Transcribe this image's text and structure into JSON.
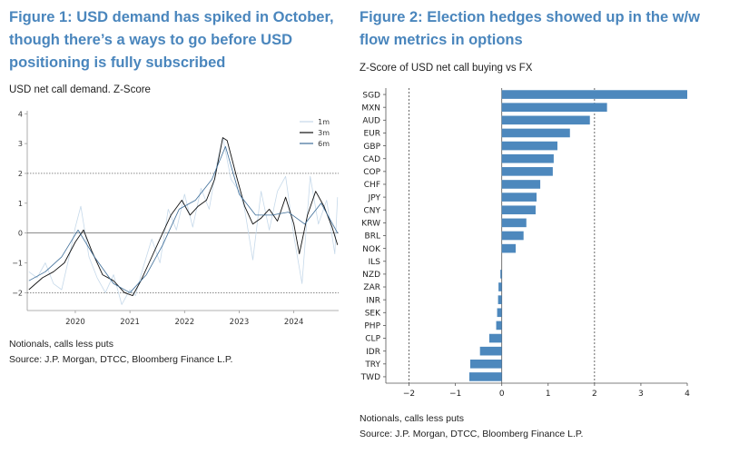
{
  "figure1": {
    "title_line1": "Figure 1: USD demand has spiked in October,",
    "title_line2": "though there’s a ways to go before USD",
    "title_line3": "positioning is fully subscribed",
    "subtitle": "USD net call demand. Z-Score",
    "note": "Notionals, calls less puts",
    "source": "Source: J.P. Morgan, DTCC, Bloomberg Finance L.P."
  },
  "figure2": {
    "title_line1": "Figure 2: Election hedges showed up in the w/w",
    "title_line2": "flow metrics in options",
    "subtitle": "Z-Score of USD net call buying vs FX",
    "note": "Notionals, calls less puts",
    "source": "Source: J.P. Morgan, DTCC, Bloomberg Finance L.P."
  },
  "chart_data": [
    {
      "type": "line",
      "x_tick_labels": [
        "2020",
        "2021",
        "2022",
        "2023",
        "2024"
      ],
      "xlim": [
        2019.12,
        2024.82
      ],
      "ylim": [
        -2.6,
        4.1
      ],
      "y_tick_labels": [
        "4",
        "3",
        "2",
        "1",
        "0",
        "−1",
        "−2"
      ],
      "reference_lines": [
        2,
        0,
        -2
      ],
      "legend_position": "top-right",
      "series": [
        {
          "name": "1m",
          "color": "#c6d9ea",
          "x": [
            2019.15,
            2019.3,
            2019.45,
            2019.6,
            2019.75,
            2019.9,
            2020.0,
            2020.1,
            2020.25,
            2020.4,
            2020.55,
            2020.7,
            2020.85,
            2021.0,
            2021.1,
            2021.25,
            2021.4,
            2021.55,
            2021.7,
            2021.85,
            2022.0,
            2022.15,
            2022.3,
            2022.45,
            2022.6,
            2022.7,
            2022.85,
            2023.0,
            2023.1,
            2023.25,
            2023.4,
            2023.55,
            2023.7,
            2023.85,
            2024.0,
            2024.15,
            2024.3,
            2024.45,
            2024.6,
            2024.75,
            2024.8
          ],
          "y": [
            -1.3,
            -1.5,
            -1.0,
            -1.7,
            -1.9,
            -0.7,
            0.2,
            0.9,
            -0.8,
            -1.5,
            -2.0,
            -1.4,
            -2.4,
            -1.9,
            -2.1,
            -1.1,
            -0.2,
            -1.0,
            0.8,
            0.1,
            1.3,
            0.2,
            1.5,
            0.8,
            2.4,
            3.2,
            1.8,
            1.4,
            0.8,
            -0.9,
            1.4,
            0.1,
            1.4,
            1.9,
            -0.1,
            -1.7,
            1.9,
            0.3,
            1.1,
            -0.7,
            1.2
          ]
        },
        {
          "name": "3m",
          "color": "#111111",
          "x": [
            2019.15,
            2019.4,
            2019.6,
            2019.8,
            2020.0,
            2020.15,
            2020.3,
            2020.5,
            2020.7,
            2020.9,
            2021.05,
            2021.2,
            2021.35,
            2021.55,
            2021.75,
            2021.95,
            2022.1,
            2022.25,
            2022.4,
            2022.55,
            2022.7,
            2022.78,
            2022.95,
            2023.1,
            2023.25,
            2023.4,
            2023.55,
            2023.7,
            2023.85,
            2024.0,
            2024.1,
            2024.25,
            2024.4,
            2024.55,
            2024.7,
            2024.8
          ],
          "y": [
            -1.9,
            -1.5,
            -1.3,
            -1.0,
            -0.3,
            0.1,
            -0.6,
            -1.4,
            -1.6,
            -2.0,
            -2.1,
            -1.6,
            -1.0,
            -0.2,
            0.6,
            1.1,
            0.6,
            0.9,
            1.1,
            1.8,
            3.2,
            3.1,
            1.9,
            0.9,
            0.3,
            0.5,
            0.8,
            0.4,
            1.2,
            0.3,
            -0.7,
            0.6,
            1.4,
            0.9,
            0.2,
            -0.4
          ]
        },
        {
          "name": "6m",
          "color": "#3d6d98",
          "x": [
            2019.15,
            2019.45,
            2019.75,
            2020.05,
            2020.35,
            2020.7,
            2021.0,
            2021.3,
            2021.6,
            2021.9,
            2022.2,
            2022.5,
            2022.75,
            2023.0,
            2023.3,
            2023.6,
            2023.9,
            2024.2,
            2024.5,
            2024.8
          ],
          "y": [
            -1.6,
            -1.3,
            -0.8,
            0.1,
            -0.8,
            -1.7,
            -2.0,
            -1.4,
            -0.4,
            0.8,
            1.1,
            1.8,
            2.9,
            1.3,
            0.6,
            0.6,
            0.7,
            0.3,
            1.0,
            0.0
          ]
        }
      ]
    },
    {
      "type": "bar",
      "orientation": "horizontal",
      "categories": [
        "SGD",
        "MXN",
        "AUD",
        "EUR",
        "GBP",
        "CAD",
        "COP",
        "CHF",
        "JPY",
        "CNY",
        "KRW",
        "BRL",
        "NOK",
        "ILS",
        "NZD",
        "ZAR",
        "INR",
        "SEK",
        "PHP",
        "CLP",
        "IDR",
        "TRY",
        "TWD"
      ],
      "values": [
        4.0,
        2.27,
        1.9,
        1.47,
        1.2,
        1.12,
        1.1,
        0.83,
        0.75,
        0.73,
        0.53,
        0.47,
        0.3,
        0.0,
        -0.03,
        -0.07,
        -0.08,
        -0.1,
        -0.12,
        -0.27,
        -0.47,
        -0.68,
        -0.7
      ],
      "xlim": [
        -2.5,
        4.0
      ],
      "x_tick_labels": [
        "−2",
        "−1",
        "0",
        "1",
        "2",
        "3",
        "4"
      ],
      "reference_lines": [
        -2,
        2
      ],
      "bar_color": "#4d88bd"
    }
  ]
}
